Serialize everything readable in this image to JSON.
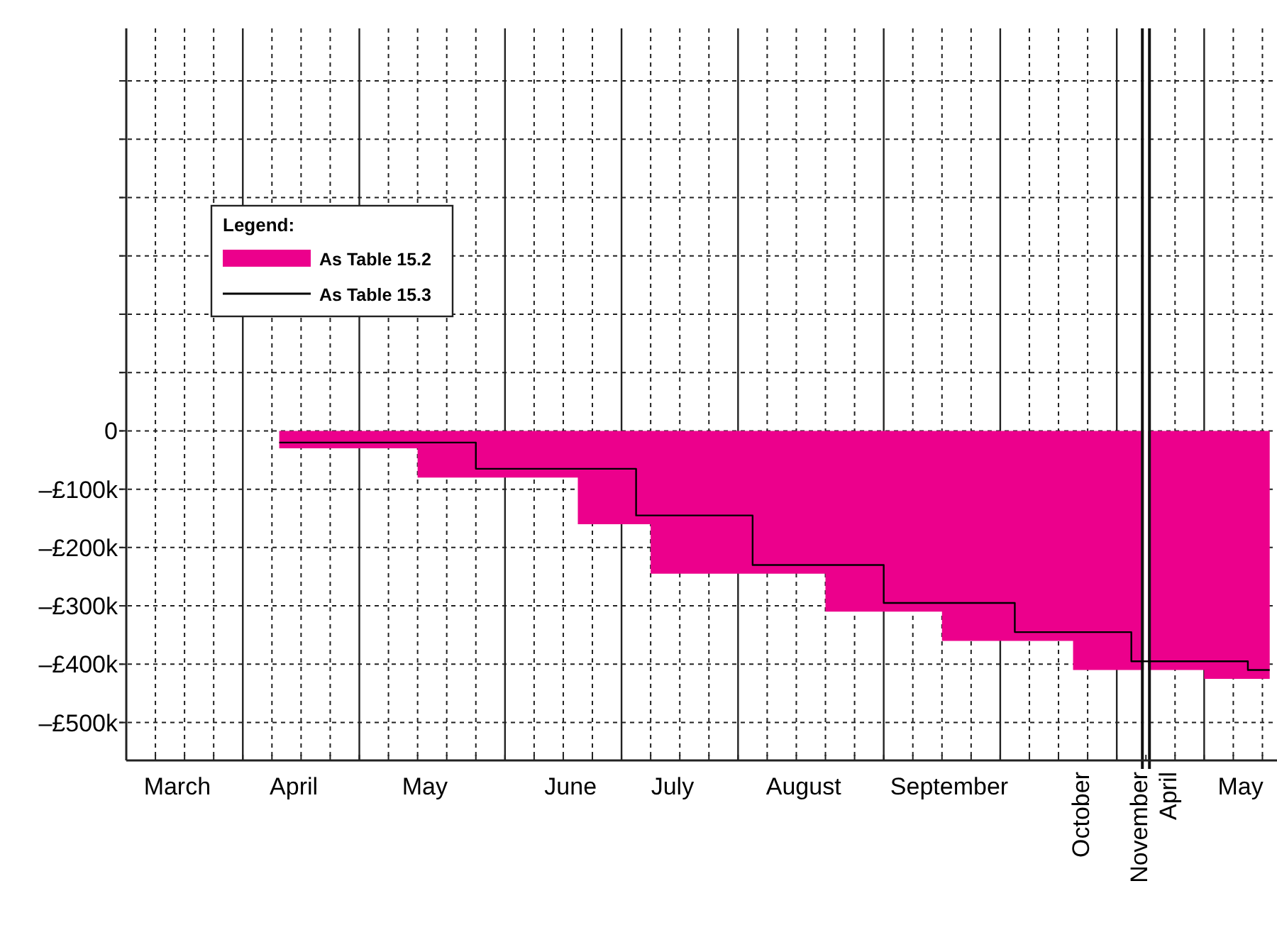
{
  "chart_data": {
    "type": "area",
    "legend_title": "Legend:",
    "legend": "top left",
    "grid": true,
    "ylim": [
      -565,
      690
    ],
    "categories": [
      null,
      null,
      null,
      "March",
      null,
      null,
      null,
      null,
      null,
      null,
      null,
      "April",
      null,
      null,
      null,
      null,
      null,
      null,
      null,
      null,
      "May",
      null,
      null,
      null,
      null,
      null,
      null,
      null,
      null,
      null,
      "June",
      null,
      null,
      null,
      null,
      null,
      null,
      "July",
      null,
      null,
      null,
      null,
      null,
      null,
      null,
      null,
      "August",
      null,
      null,
      null,
      null,
      null,
      null,
      null,
      null,
      null,
      "September",
      null,
      null,
      null,
      null,
      null,
      null,
      null,
      null,
      "October",
      null,
      null,
      null,
      "November",
      null,
      "April",
      null,
      null,
      null,
      null,
      "May",
      null,
      null
    ],
    "yticks": [
      {
        "value": -500,
        "label": "–£500k"
      },
      {
        "value": -400,
        "label": "–£400k"
      },
      {
        "value": -300,
        "label": "–£300k"
      },
      {
        "value": -200,
        "label": "–£200k"
      },
      {
        "value": -100,
        "label": "–£100k"
      },
      {
        "value": 0,
        "label": "0"
      },
      {
        "value": 100,
        "label": null
      },
      {
        "value": 200,
        "label": null
      },
      {
        "value": 300,
        "label": null
      },
      {
        "value": 400,
        "label": null
      },
      {
        "value": 500,
        "label": null
      },
      {
        "value": 600,
        "label": null
      }
    ],
    "series": [
      {
        "name": "As Table 15.2",
        "color": "#ec008c",
        "values": [
          null,
          null,
          null,
          null,
          null,
          null,
          null,
          null,
          null,
          null,
          -30,
          -30,
          -30,
          -30,
          -30,
          -30,
          -30,
          -30,
          -30,
          -30,
          -80,
          -80,
          -80,
          -80,
          -80,
          -80,
          -80,
          -80,
          -80,
          -80,
          -80,
          -160,
          -160,
          -160,
          -160,
          -160,
          -245,
          -245,
          -245,
          -245,
          -245,
          -245,
          -245,
          -245,
          -245,
          -245,
          -245,
          -245,
          -310,
          -310,
          -310,
          -310,
          -310,
          -310,
          -310,
          -310,
          -360,
          -360,
          -360,
          -360,
          -360,
          -360,
          -360,
          -360,
          -360,
          -410,
          -410,
          -410,
          -410,
          -410,
          -410,
          -410,
          -410,
          -410,
          -425,
          -425,
          -425,
          -425,
          -425
        ]
      },
      {
        "name": "As Table 15.3",
        "type": "step",
        "color": "#000000",
        "values": [
          null,
          null,
          null,
          null,
          null,
          null,
          null,
          null,
          null,
          null,
          -20,
          -20,
          -20,
          -20,
          -20,
          -20,
          -20,
          -20,
          -20,
          -20,
          -20,
          -20,
          -20,
          -20,
          -65,
          -65,
          -65,
          -65,
          -65,
          -65,
          -65,
          -65,
          -65,
          -65,
          -65,
          -145,
          -145,
          -145,
          -145,
          -145,
          -145,
          -145,
          -145,
          -230,
          -230,
          -230,
          -230,
          -230,
          -230,
          -230,
          -230,
          -230,
          -295,
          -295,
          -295,
          -295,
          -295,
          -295,
          -295,
          -295,
          -295,
          -345,
          -345,
          -345,
          -345,
          -345,
          -345,
          -345,
          -345,
          -395,
          -395,
          -395,
          -395,
          -395,
          -395,
          -395,
          -395,
          -410,
          -410
        ]
      }
    ]
  }
}
